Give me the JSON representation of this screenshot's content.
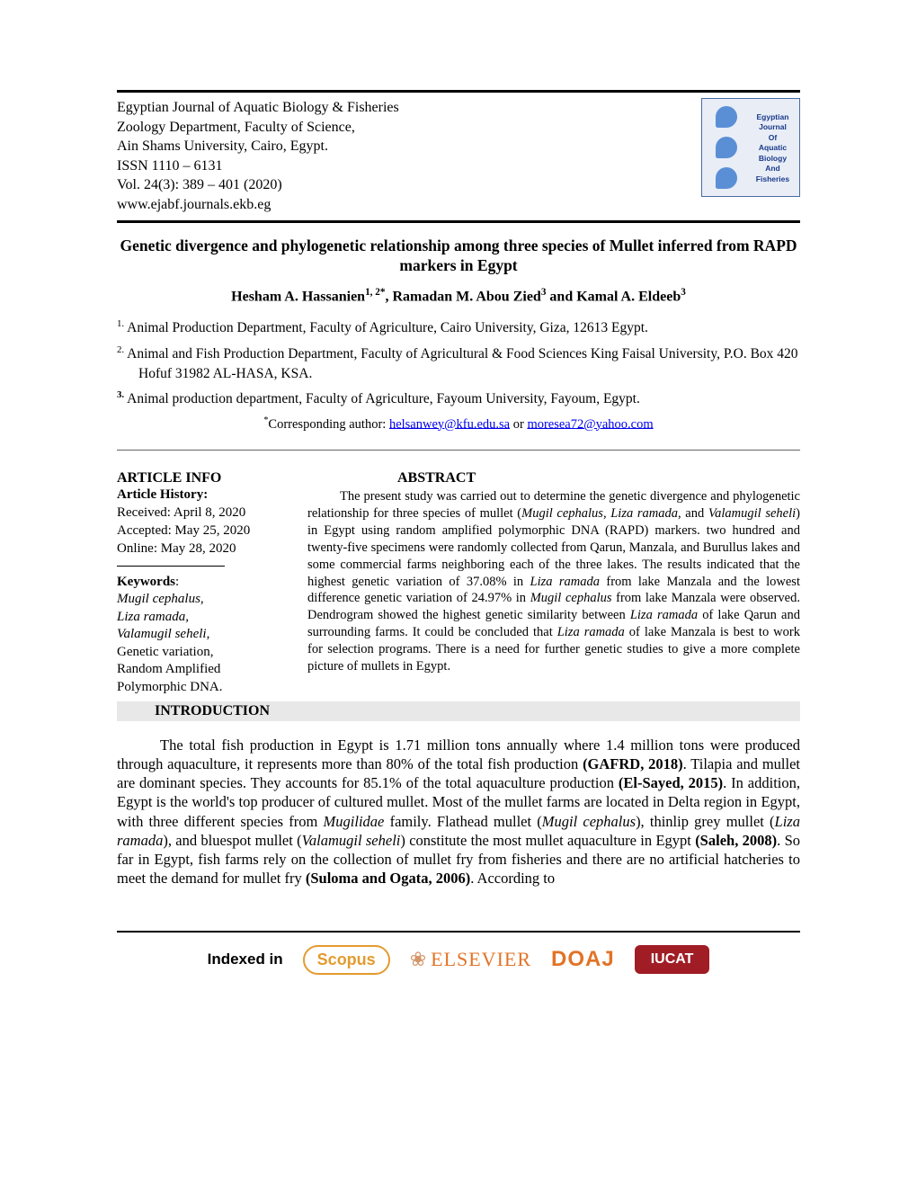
{
  "journal": {
    "name": "Egyptian Journal of Aquatic Biology & Fisheries",
    "department": "Zoology Department, Faculty of Science,",
    "university": "Ain Shams University, Cairo, Egypt.",
    "issn": "ISSN 1110 – 6131",
    "volume": "Vol. 24(3): 389 – 401 (2020)",
    "url": "www.ejabf.journals.ekb.eg"
  },
  "logo": {
    "line1": "Egyptian Journal",
    "line2": "Of",
    "line3": "Aquatic Biology",
    "line4": "And",
    "line5": "Fisheries"
  },
  "paper": {
    "title": "Genetic divergence and phylogenetic relationship among three species of Mullet inferred from RAPD markers in Egypt",
    "authors_html": "Hesham A. Hassanien<sup>1, 2*</sup>, Ramadan M. Abou Zied<sup>3</sup> and Kamal A. Eldeeb<sup>3</sup>"
  },
  "affiliations": {
    "a1": "Animal Production Department, Faculty of Agriculture, Cairo University, Giza, 12613 Egypt.",
    "a2": "Animal and Fish Production Department, Faculty of Agricultural & Food Sciences King Faisal University, P.O. Box 420 Hofuf 31982 AL-HASA, KSA.",
    "a3": "Animal production department, Faculty of Agriculture, Fayoum University, Fayoum, Egypt."
  },
  "corresponding": {
    "label": "Corresponding author: ",
    "email1": "helsanwey@kfu.edu.sa",
    "or": " or ",
    "email2": "moresea72@yahoo.com"
  },
  "article_info": {
    "heading": "ARTICLE INFO",
    "history_label": "Article History:",
    "received": "Received: April 8, 2020",
    "accepted": "Accepted: May 25, 2020",
    "online": "Online: May 28, 2020",
    "keywords_label": "Keywords",
    "kw1": "Mugil cephalus",
    "kw2": "Liza ramada,",
    "kw3": "Valamugil seheli",
    "kw4": "Genetic variation,",
    "kw5": "Random Amplified Polymorphic DNA."
  },
  "abstract": {
    "heading": "ABSTRACT",
    "text_parts": {
      "p1": "The present study was carried out to determine the genetic divergence and phylogenetic relationship for three species of mullet (",
      "sp1": "Mugil cephalus, Liza ramada",
      "p2": ", and ",
      "sp2": "Valamugil seheli",
      "p3": ") in Egypt using random amplified polymorphic DNA (RAPD) markers. two hundred and twenty-five specimens were randomly collected from Qarun, Manzala, and Burullus lakes and some commercial farms neighboring each of the three lakes. The results indicated that the highest genetic variation of 37.08% in ",
      "sp3": "Liza ramada",
      "p4": " from lake Manzala and the lowest difference genetic variation of 24.97% in ",
      "sp4": "Mugil cephalus",
      "p5": " from lake Manzala were observed. Dendrogram showed the highest genetic similarity between ",
      "sp5": "Liza ramada",
      "p6": " of lake Qarun and surrounding farms. It could be concluded that ",
      "sp6": "Liza ramada",
      "p7": " of lake Manzala is best to work for selection programs. There is a need for further genetic studies to give a more complete picture of mullets in Egypt."
    }
  },
  "introduction": {
    "heading": "INTRODUCTION",
    "parts": {
      "t1": "The total fish production in Egypt is 1.71 million tons annually where 1.4 million tons were produced through aquaculture, it represents more than 80% of the total fish production ",
      "r1": "(GAFRD, 2018)",
      "t2": ". Tilapia and mullet are dominant species. They accounts for 85.1% of the total aquaculture production ",
      "r2": "(El-Sayed, 2015)",
      "t3": ". In addition, Egypt is the world's top producer of cultured mullet. Most of the mullet farms are located in Delta region in Egypt, with three different species from ",
      "sp1": "Mugilidae",
      "t4": " family. Flathead mullet (",
      "sp2": "Mugil cephalus",
      "t5": "), thinlip grey mullet (",
      "sp3": "Liza ramada",
      "t6": "), and bluespot mullet (",
      "sp4": "Valamugil seheli",
      "t7": ") constitute the most mullet aquaculture in Egypt ",
      "r3": "(Saleh, 2008)",
      "t8": ". So far in Egypt, fish farms rely on the collection of mullet fry from fisheries and there are no artificial hatcheries to meet the demand for mullet fry ",
      "r4": "(Suloma and Ogata, 2006)",
      "t9": ". According to"
    }
  },
  "indexing": {
    "label": "Indexed in",
    "scopus": "Scopus",
    "elsevier": "ELSEVIER",
    "doaj": "DOAJ",
    "iucat": "IUCAT"
  }
}
